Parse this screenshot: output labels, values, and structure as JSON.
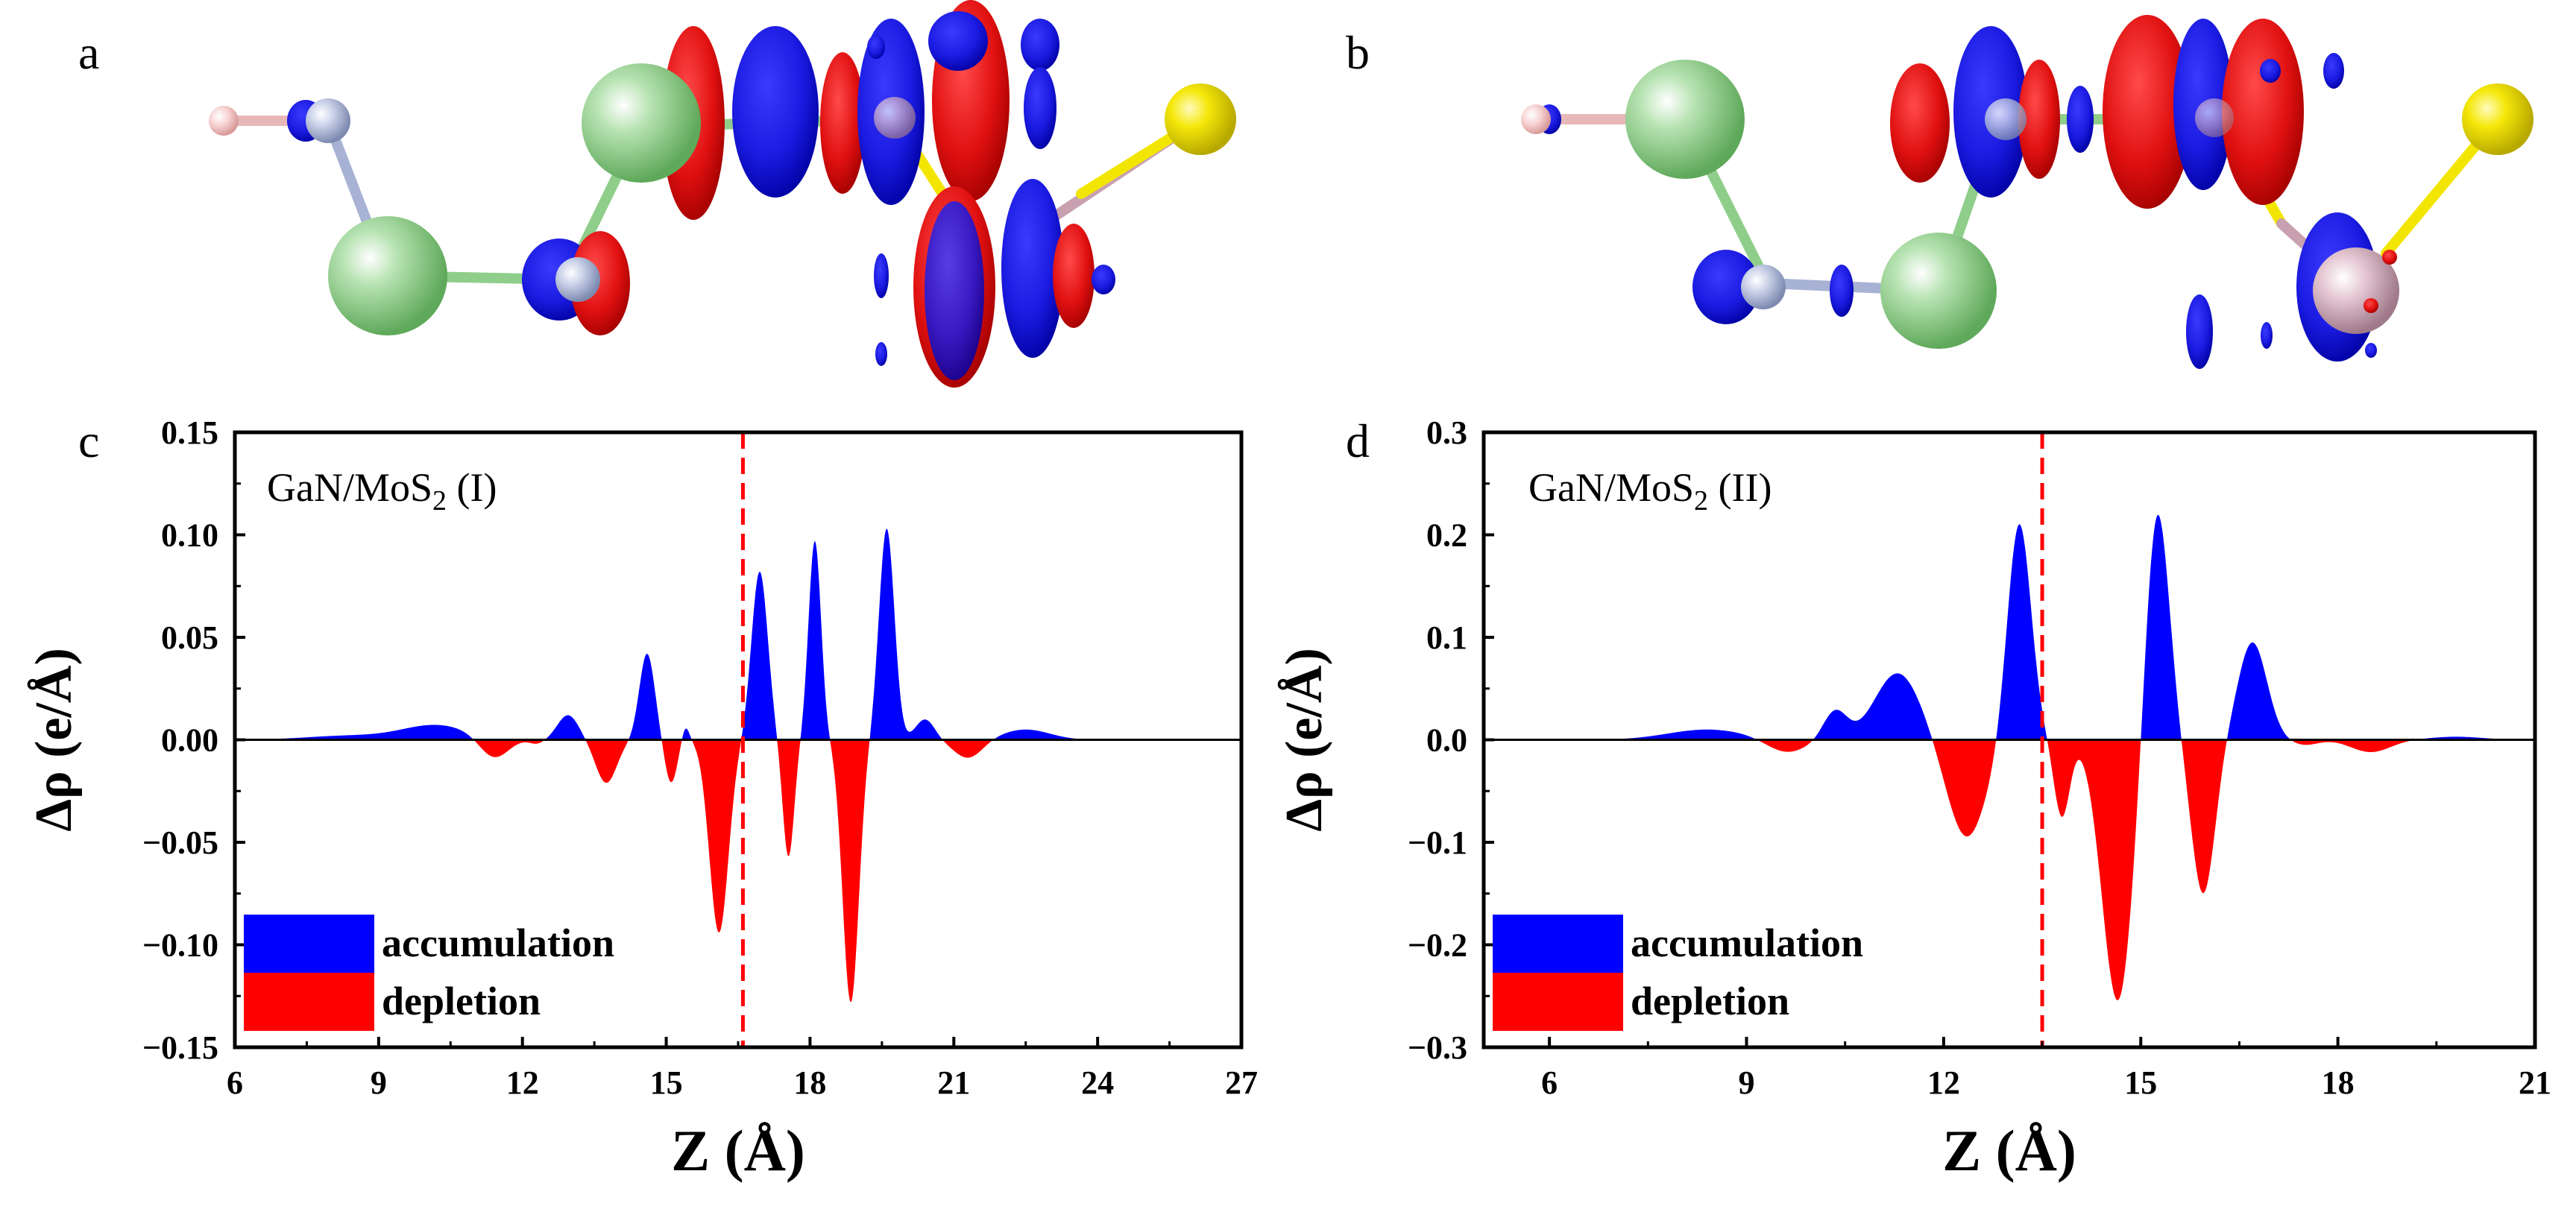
{
  "panels": {
    "a": "a",
    "b": "b",
    "c": "c",
    "d": "d"
  },
  "colors": {
    "accumulation": "#0000ff",
    "depletion": "#ff0000",
    "interface": "#ff0000",
    "ga_atom": "#8fce8a",
    "n_atom": "#b4bedc",
    "h_atom": "#f4c3c3",
    "s_atom": "#f2e600",
    "mo_atom": "#d4aabb"
  },
  "structures": [
    {
      "panel": "a",
      "description_icon": "molecule-structure-gan-mos2-i"
    },
    {
      "panel": "b",
      "description_icon": "molecule-structure-gan-mos2-ii"
    }
  ],
  "chart_data": [
    {
      "type": "area",
      "panel": "c",
      "title_main": "GaN/MoS",
      "title_sub": "2",
      "title_suffix": " (I)",
      "xlabel": "Z (Å)",
      "ylabel": "Δρ (e/Å)",
      "xlim": [
        6,
        27
      ],
      "ylim": [
        -0.15,
        0.15
      ],
      "xticks": [
        "6",
        "9",
        "12",
        "15",
        "18",
        "21",
        "24",
        "27"
      ],
      "yticks": [
        "0.15",
        "0.10",
        "0.05",
        "0.00",
        "−0.05",
        "−0.10",
        "−0.15"
      ],
      "interface_z": 16.6,
      "legend": [
        "accumulation",
        "depletion"
      ],
      "peaks": [
        {
          "z": 10.2,
          "value": 0.007,
          "width": 0.7
        },
        {
          "z": 8.4,
          "value": 0.002,
          "width": 0.9
        },
        {
          "z": 11.4,
          "value": -0.01,
          "width": 0.3
        },
        {
          "z": 12.3,
          "value": -0.002,
          "width": 0.15
        },
        {
          "z": 12.95,
          "value": 0.012,
          "width": 0.22
        },
        {
          "z": 13.75,
          "value": -0.021,
          "width": 0.22
        },
        {
          "z": 14.6,
          "value": 0.042,
          "width": 0.16
        },
        {
          "z": 15.1,
          "value": -0.021,
          "width": 0.13
        },
        {
          "z": 15.4,
          "value": 0.007,
          "width": 0.08
        },
        {
          "z": 16.1,
          "value": -0.094,
          "width": 0.2
        },
        {
          "z": 16.95,
          "value": 0.082,
          "width": 0.17
        },
        {
          "z": 17.55,
          "value": -0.057,
          "width": 0.12
        },
        {
          "z": 18.1,
          "value": 0.097,
          "width": 0.13
        },
        {
          "z": 18.85,
          "value": -0.128,
          "width": 0.17
        },
        {
          "z": 19.6,
          "value": 0.103,
          "width": 0.16
        },
        {
          "z": 20.4,
          "value": 0.01,
          "width": 0.2
        },
        {
          "z": 21.3,
          "value": -0.009,
          "width": 0.3
        },
        {
          "z": 22.5,
          "value": 0.005,
          "width": 0.5
        }
      ]
    },
    {
      "type": "area",
      "panel": "d",
      "title_main": "GaN/MoS",
      "title_sub": "2",
      "title_suffix": " (II)",
      "xlabel": "Z (Å)",
      "ylabel": "Δρ (e/Å)",
      "xlim": [
        5,
        21
      ],
      "ylim": [
        -0.3,
        0.3
      ],
      "xticks": [
        "6",
        "9",
        "12",
        "15",
        "18",
        "21"
      ],
      "yticks": [
        "0.3",
        "0.2",
        "0.1",
        "0.0",
        "−0.1",
        "−0.2",
        "−0.3"
      ],
      "interface_z": 13.5,
      "legend": [
        "accumulation",
        "depletion"
      ],
      "peaks": [
        {
          "z": 8.4,
          "value": 0.01,
          "width": 0.6
        },
        {
          "z": 9.6,
          "value": -0.013,
          "width": 0.3
        },
        {
          "z": 10.35,
          "value": 0.028,
          "width": 0.18
        },
        {
          "z": 11.3,
          "value": 0.065,
          "width": 0.35
        },
        {
          "z": 12.35,
          "value": -0.095,
          "width": 0.3
        },
        {
          "z": 13.15,
          "value": 0.213,
          "width": 0.18
        },
        {
          "z": 13.8,
          "value": -0.075,
          "width": 0.12
        },
        {
          "z": 14.65,
          "value": -0.255,
          "width": 0.24
        },
        {
          "z": 15.25,
          "value": 0.23,
          "width": 0.18
        },
        {
          "z": 15.95,
          "value": -0.15,
          "width": 0.18
        },
        {
          "z": 16.7,
          "value": 0.095,
          "width": 0.22
        },
        {
          "z": 17.5,
          "value": -0.005,
          "width": 0.2
        },
        {
          "z": 18.5,
          "value": -0.012,
          "width": 0.3
        },
        {
          "z": 19.8,
          "value": 0.003,
          "width": 0.4
        }
      ]
    }
  ]
}
